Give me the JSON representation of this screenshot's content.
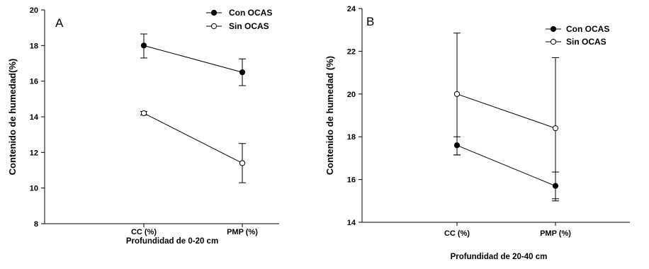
{
  "chart_data": [
    {
      "type": "line",
      "panel_label": "A",
      "categories": [
        "CC (%)",
        "PMP (%)"
      ],
      "xlabel": "Profundidad de 0-20 cm",
      "ylabel": "Contenido de humedad(%)",
      "ylim": [
        8,
        20
      ],
      "yticks": [
        8,
        10,
        12,
        14,
        16,
        18,
        20
      ],
      "legend_position": "top-right",
      "grid": false,
      "series": [
        {
          "name": "Con OCAS",
          "marker": "filled",
          "values": [
            18.0,
            16.5
          ],
          "err_low": [
            0.7,
            0.75
          ],
          "err_high": [
            0.65,
            0.75
          ]
        },
        {
          "name": "Sin OCAS",
          "marker": "open",
          "values": [
            14.2,
            11.4
          ],
          "err_low": [
            0.1,
            1.1
          ],
          "err_high": [
            0.1,
            1.1
          ]
        }
      ]
    },
    {
      "type": "line",
      "panel_label": "B",
      "categories": [
        "CC (%)",
        "PMP (%)"
      ],
      "xlabel": "Profundidad de 20-40 cm",
      "ylabel": "Contenido de humedad (%)",
      "ylim": [
        14,
        24
      ],
      "yticks": [
        14,
        16,
        18,
        20,
        22,
        24
      ],
      "legend_position": "top-right",
      "grid": false,
      "series": [
        {
          "name": "Con OCAS",
          "marker": "filled",
          "values": [
            17.6,
            15.7
          ],
          "err_low": [
            0.45,
            0.7
          ],
          "err_high": [
            0.4,
            0.65
          ]
        },
        {
          "name": "Sin OCAS",
          "marker": "open",
          "values": [
            20.0,
            18.4
          ],
          "err_low": [
            2.85,
            3.3
          ],
          "err_high": [
            2.85,
            3.3
          ]
        }
      ]
    }
  ]
}
